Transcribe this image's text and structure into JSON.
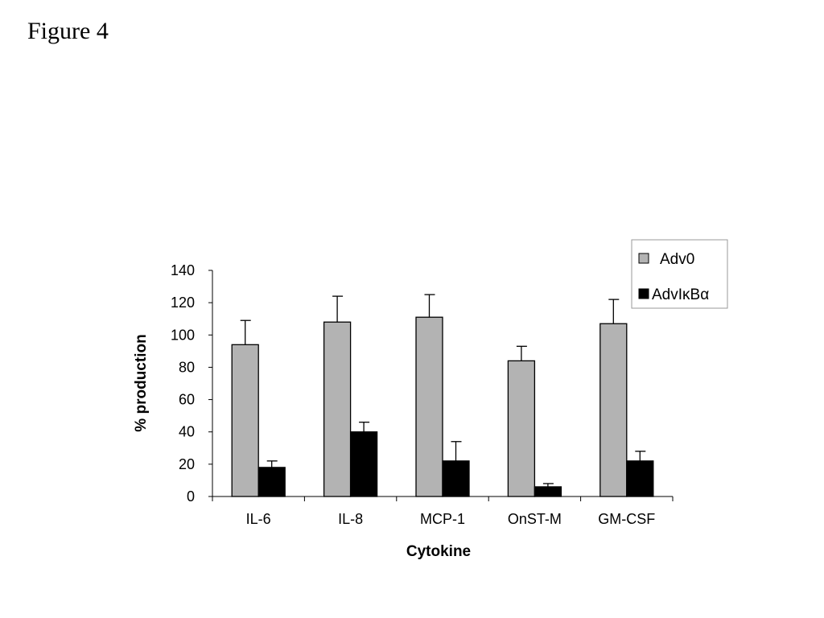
{
  "page_title": "Figure 4",
  "chart_data": {
    "type": "bar",
    "title": "",
    "xlabel": "Cytokine",
    "ylabel": "% production",
    "ylim": [
      0,
      140
    ],
    "yticks": [
      0,
      20,
      40,
      60,
      80,
      100,
      120,
      140
    ],
    "categories": [
      "IL-6",
      "IL-8",
      "MCP-1",
      "OnST-M",
      "GM-CSF"
    ],
    "series": [
      {
        "name": "Adv0",
        "color": "#b3b3b3",
        "values": [
          94,
          108,
          111,
          84,
          107
        ],
        "error": [
          15,
          16,
          14,
          9,
          15
        ]
      },
      {
        "name": "AdvIκBα",
        "color": "#000000",
        "values": [
          18,
          40,
          22,
          6,
          22
        ],
        "error": [
          4,
          6,
          12,
          2,
          6
        ]
      }
    ],
    "legend_position": "top-right",
    "grid": false
  }
}
